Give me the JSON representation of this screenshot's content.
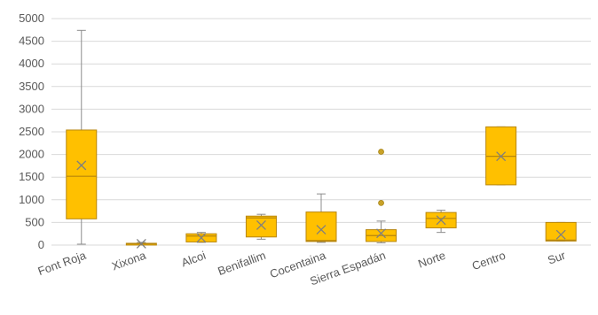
{
  "chart_data": {
    "type": "box",
    "title": "",
    "xlabel": "",
    "ylabel": "",
    "ylim": [
      0,
      5000
    ],
    "yticks": [
      0,
      500,
      1000,
      1500,
      2000,
      2500,
      3000,
      3500,
      4000,
      4500,
      5000
    ],
    "grid": "horizontal",
    "legend": "none",
    "colors": {
      "box_fill": "#FFC000",
      "box_stroke": "#B8860B",
      "whisker": "#8C8C8C",
      "mean_marker": "#7F7F7F",
      "grid": "#D9D9D9"
    },
    "categories": [
      "Font Roja",
      "Xixona",
      "Alcoi",
      "Benifallim",
      "Cocentaina",
      "Sierra Espadán",
      "Norte",
      "Centro",
      "Sur"
    ],
    "boxes": [
      {
        "category": "Font Roja",
        "min": 20,
        "q1": 580,
        "median": 1520,
        "q3": 2540,
        "max": 4740,
        "mean": 1760,
        "outliers": []
      },
      {
        "category": "Xixona",
        "min": 10,
        "q1": 20,
        "median": 30,
        "q3": 40,
        "max": 60,
        "mean": 30,
        "outliers": []
      },
      {
        "category": "Alcoi",
        "min": 60,
        "q1": 70,
        "median": 200,
        "q3": 250,
        "max": 280,
        "mean": 160,
        "outliers": []
      },
      {
        "category": "Benifallim",
        "min": 130,
        "q1": 180,
        "median": 600,
        "q3": 640,
        "max": 680,
        "mean": 440,
        "outliers": []
      },
      {
        "category": "Cocentaina",
        "min": 60,
        "q1": 80,
        "median": 100,
        "q3": 730,
        "max": 1130,
        "mean": 340,
        "outliers": []
      },
      {
        "category": "Sierra Espadán",
        "min": 50,
        "q1": 80,
        "median": 210,
        "q3": 340,
        "max": 530,
        "mean": 260,
        "outliers": [
          930,
          2060
        ]
      },
      {
        "category": "Norte",
        "min": 280,
        "q1": 380,
        "median": 590,
        "q3": 720,
        "max": 770,
        "mean": 550,
        "outliers": []
      },
      {
        "category": "Centro",
        "min": 1330,
        "q1": 1330,
        "median": 1960,
        "q3": 2610,
        "max": 2610,
        "mean": 1960,
        "outliers": []
      },
      {
        "category": "Sur",
        "min": 90,
        "q1": 90,
        "median": 110,
        "q3": 500,
        "max": 500,
        "mean": 230,
        "outliers": []
      }
    ]
  }
}
